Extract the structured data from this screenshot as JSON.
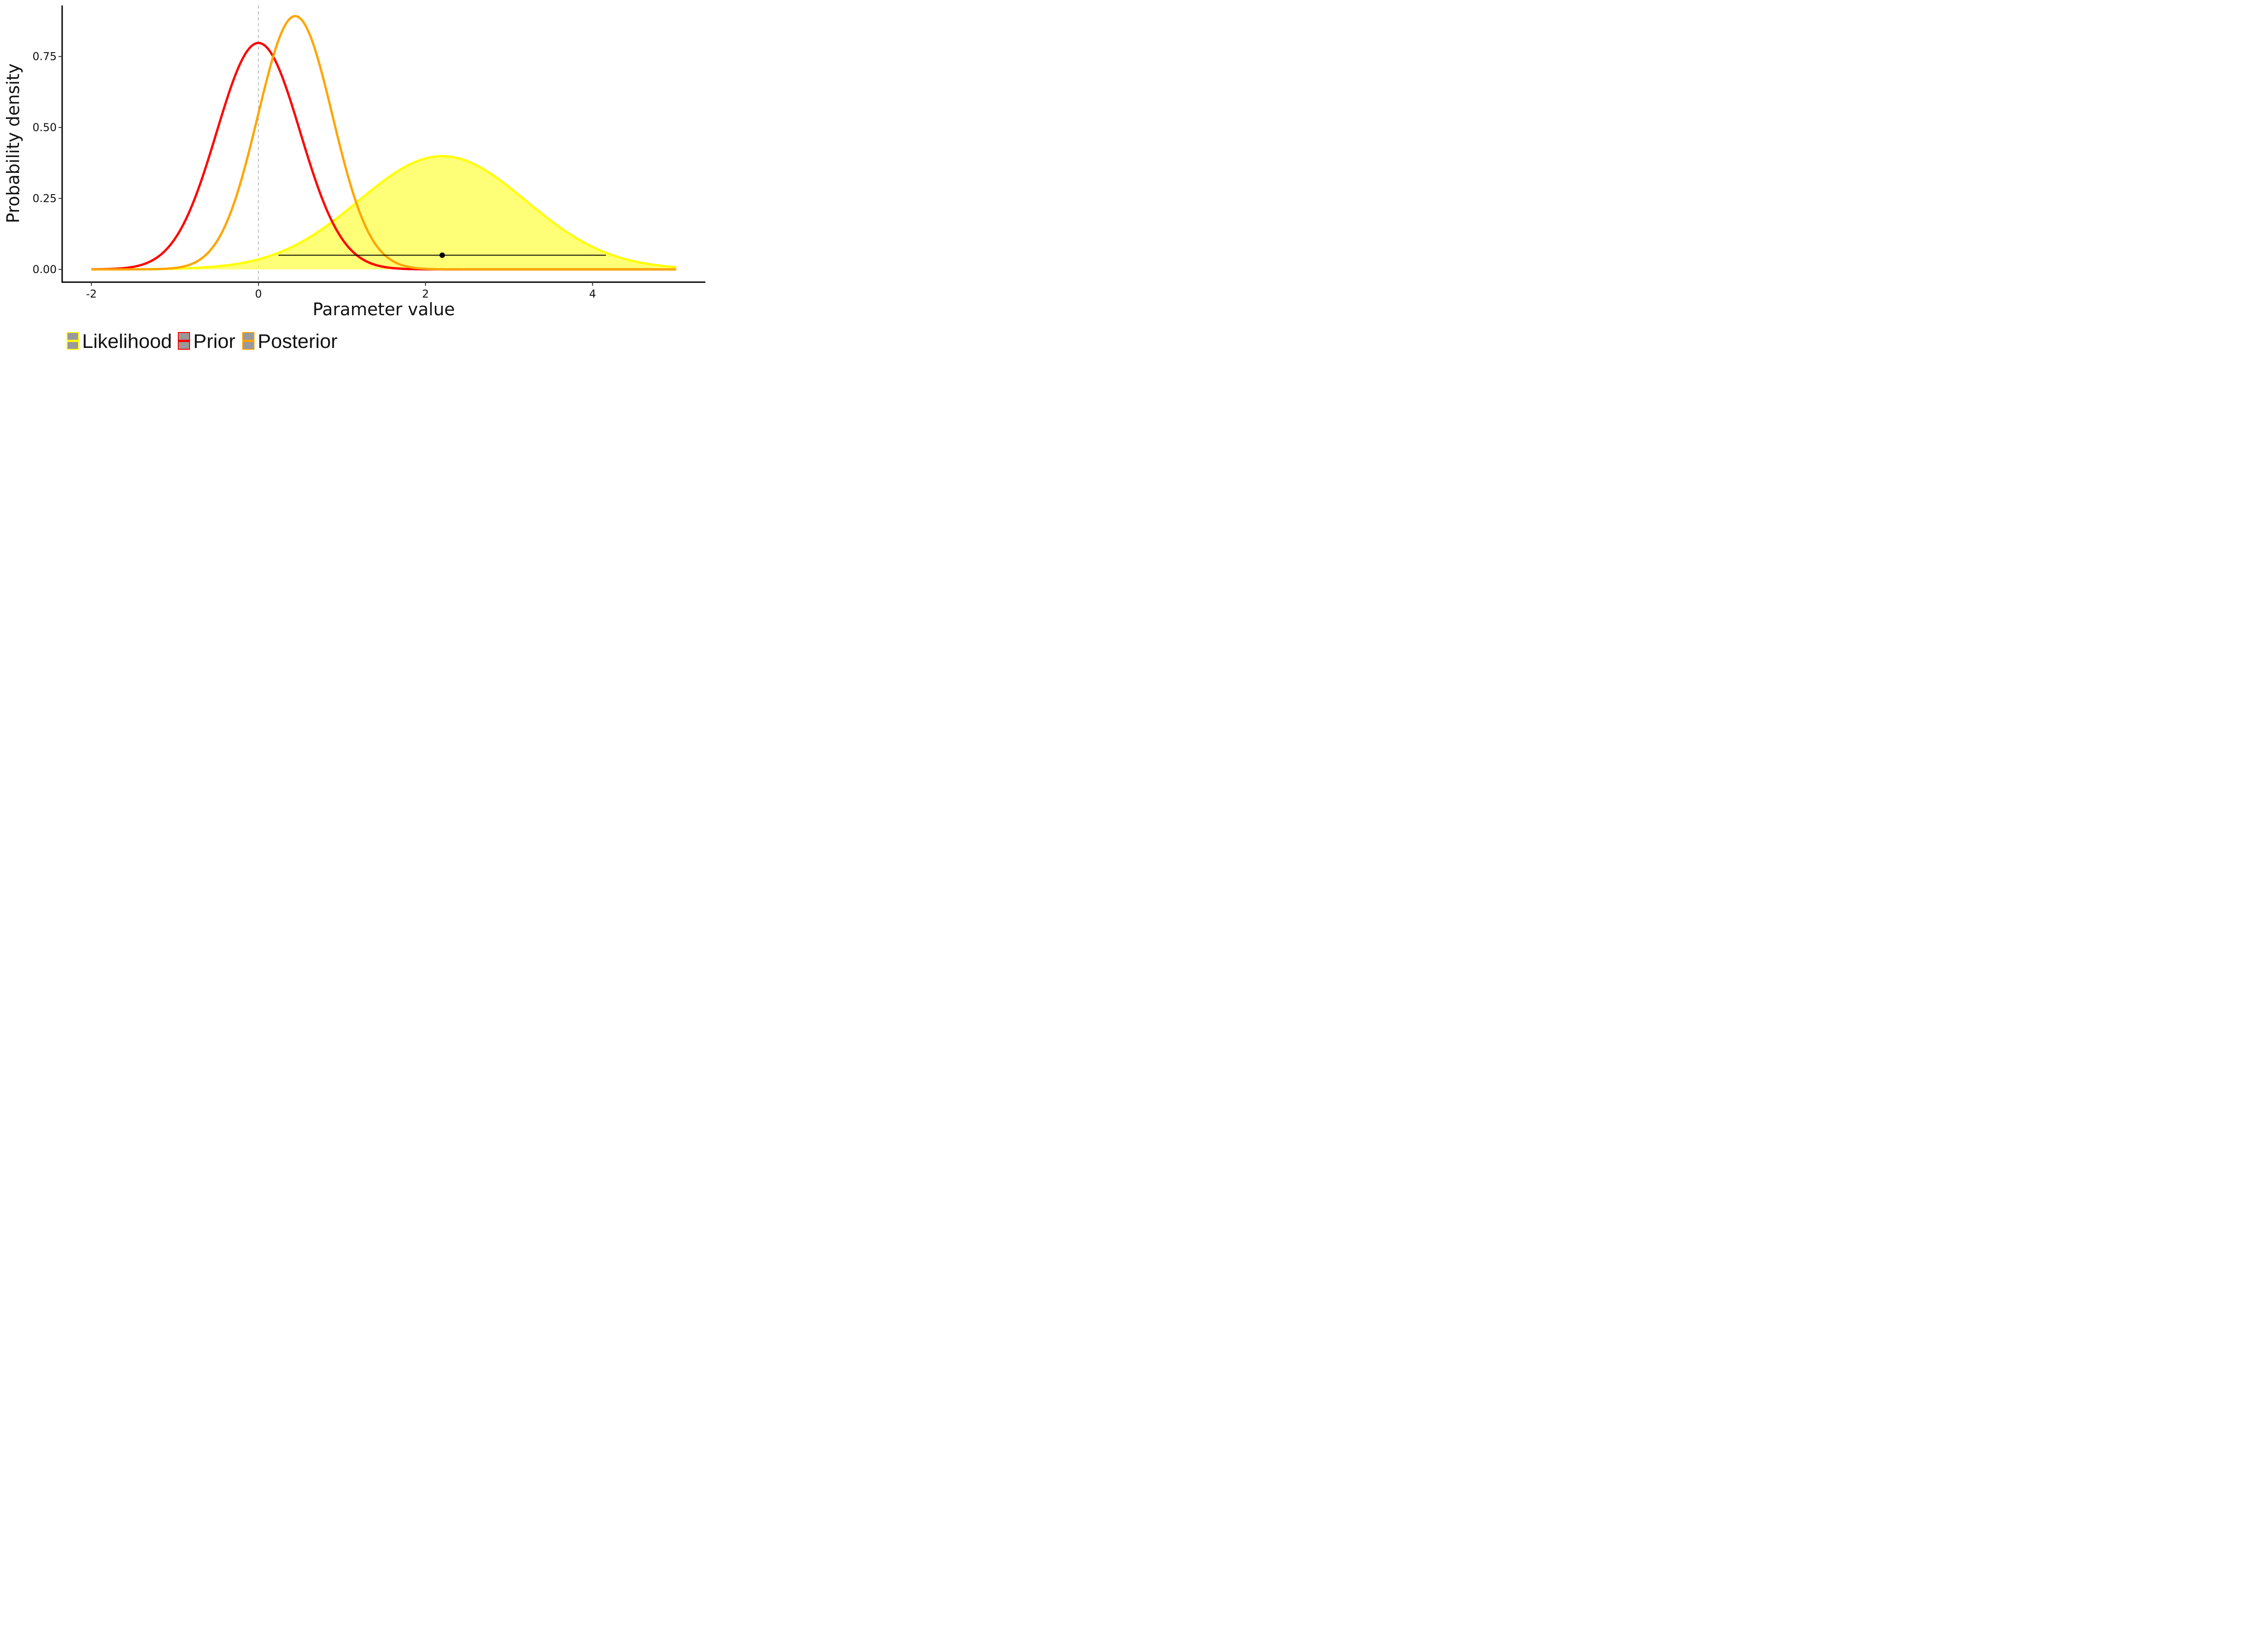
{
  "chart_data": {
    "type": "line",
    "xlabel": "Parameter value",
    "ylabel": "Probability density",
    "xlim": [
      -2.35,
      5.35
    ],
    "ylim": [
      -0.045,
      0.93
    ],
    "x_ticks": [
      {
        "value": -2,
        "label": "-2"
      },
      {
        "value": 0,
        "label": "0"
      },
      {
        "value": 2,
        "label": "2"
      },
      {
        "value": 4,
        "label": "4"
      }
    ],
    "y_ticks": [
      {
        "value": 0,
        "label": "0.00"
      },
      {
        "value": 0.25,
        "label": "0.25"
      },
      {
        "value": 0.5,
        "label": "0.50"
      },
      {
        "value": 0.75,
        "label": "0.75"
      }
    ],
    "grid": false,
    "reference_line": {
      "x": 0,
      "style": "dashed",
      "color": "#bbbbbb"
    },
    "series": [
      {
        "name": "Likelihood",
        "distribution": "normal",
        "mean": 2.2,
        "sd": 1.0,
        "color": "#ffff00",
        "fill": "#ffff55",
        "fill_opacity": 0.8
      },
      {
        "name": "Prior",
        "distribution": "normal",
        "mean": 0.0,
        "sd": 0.5,
        "color": "#ff0000"
      },
      {
        "name": "Posterior",
        "distribution": "normal",
        "mean": 0.44,
        "sd": 0.447,
        "color": "#ffa500"
      }
    ],
    "x_range": [
      -2,
      5
    ],
    "interval": {
      "point": 2.2,
      "low": 0.24,
      "high": 4.16,
      "y": 0.05,
      "color": "#000000"
    },
    "legend": {
      "position": "bottom-left",
      "entries": [
        {
          "label": "Likelihood",
          "color": "#ffff00"
        },
        {
          "label": "Prior",
          "color": "#ff0000"
        },
        {
          "label": "Posterior",
          "color": "#ffa500"
        }
      ]
    }
  }
}
